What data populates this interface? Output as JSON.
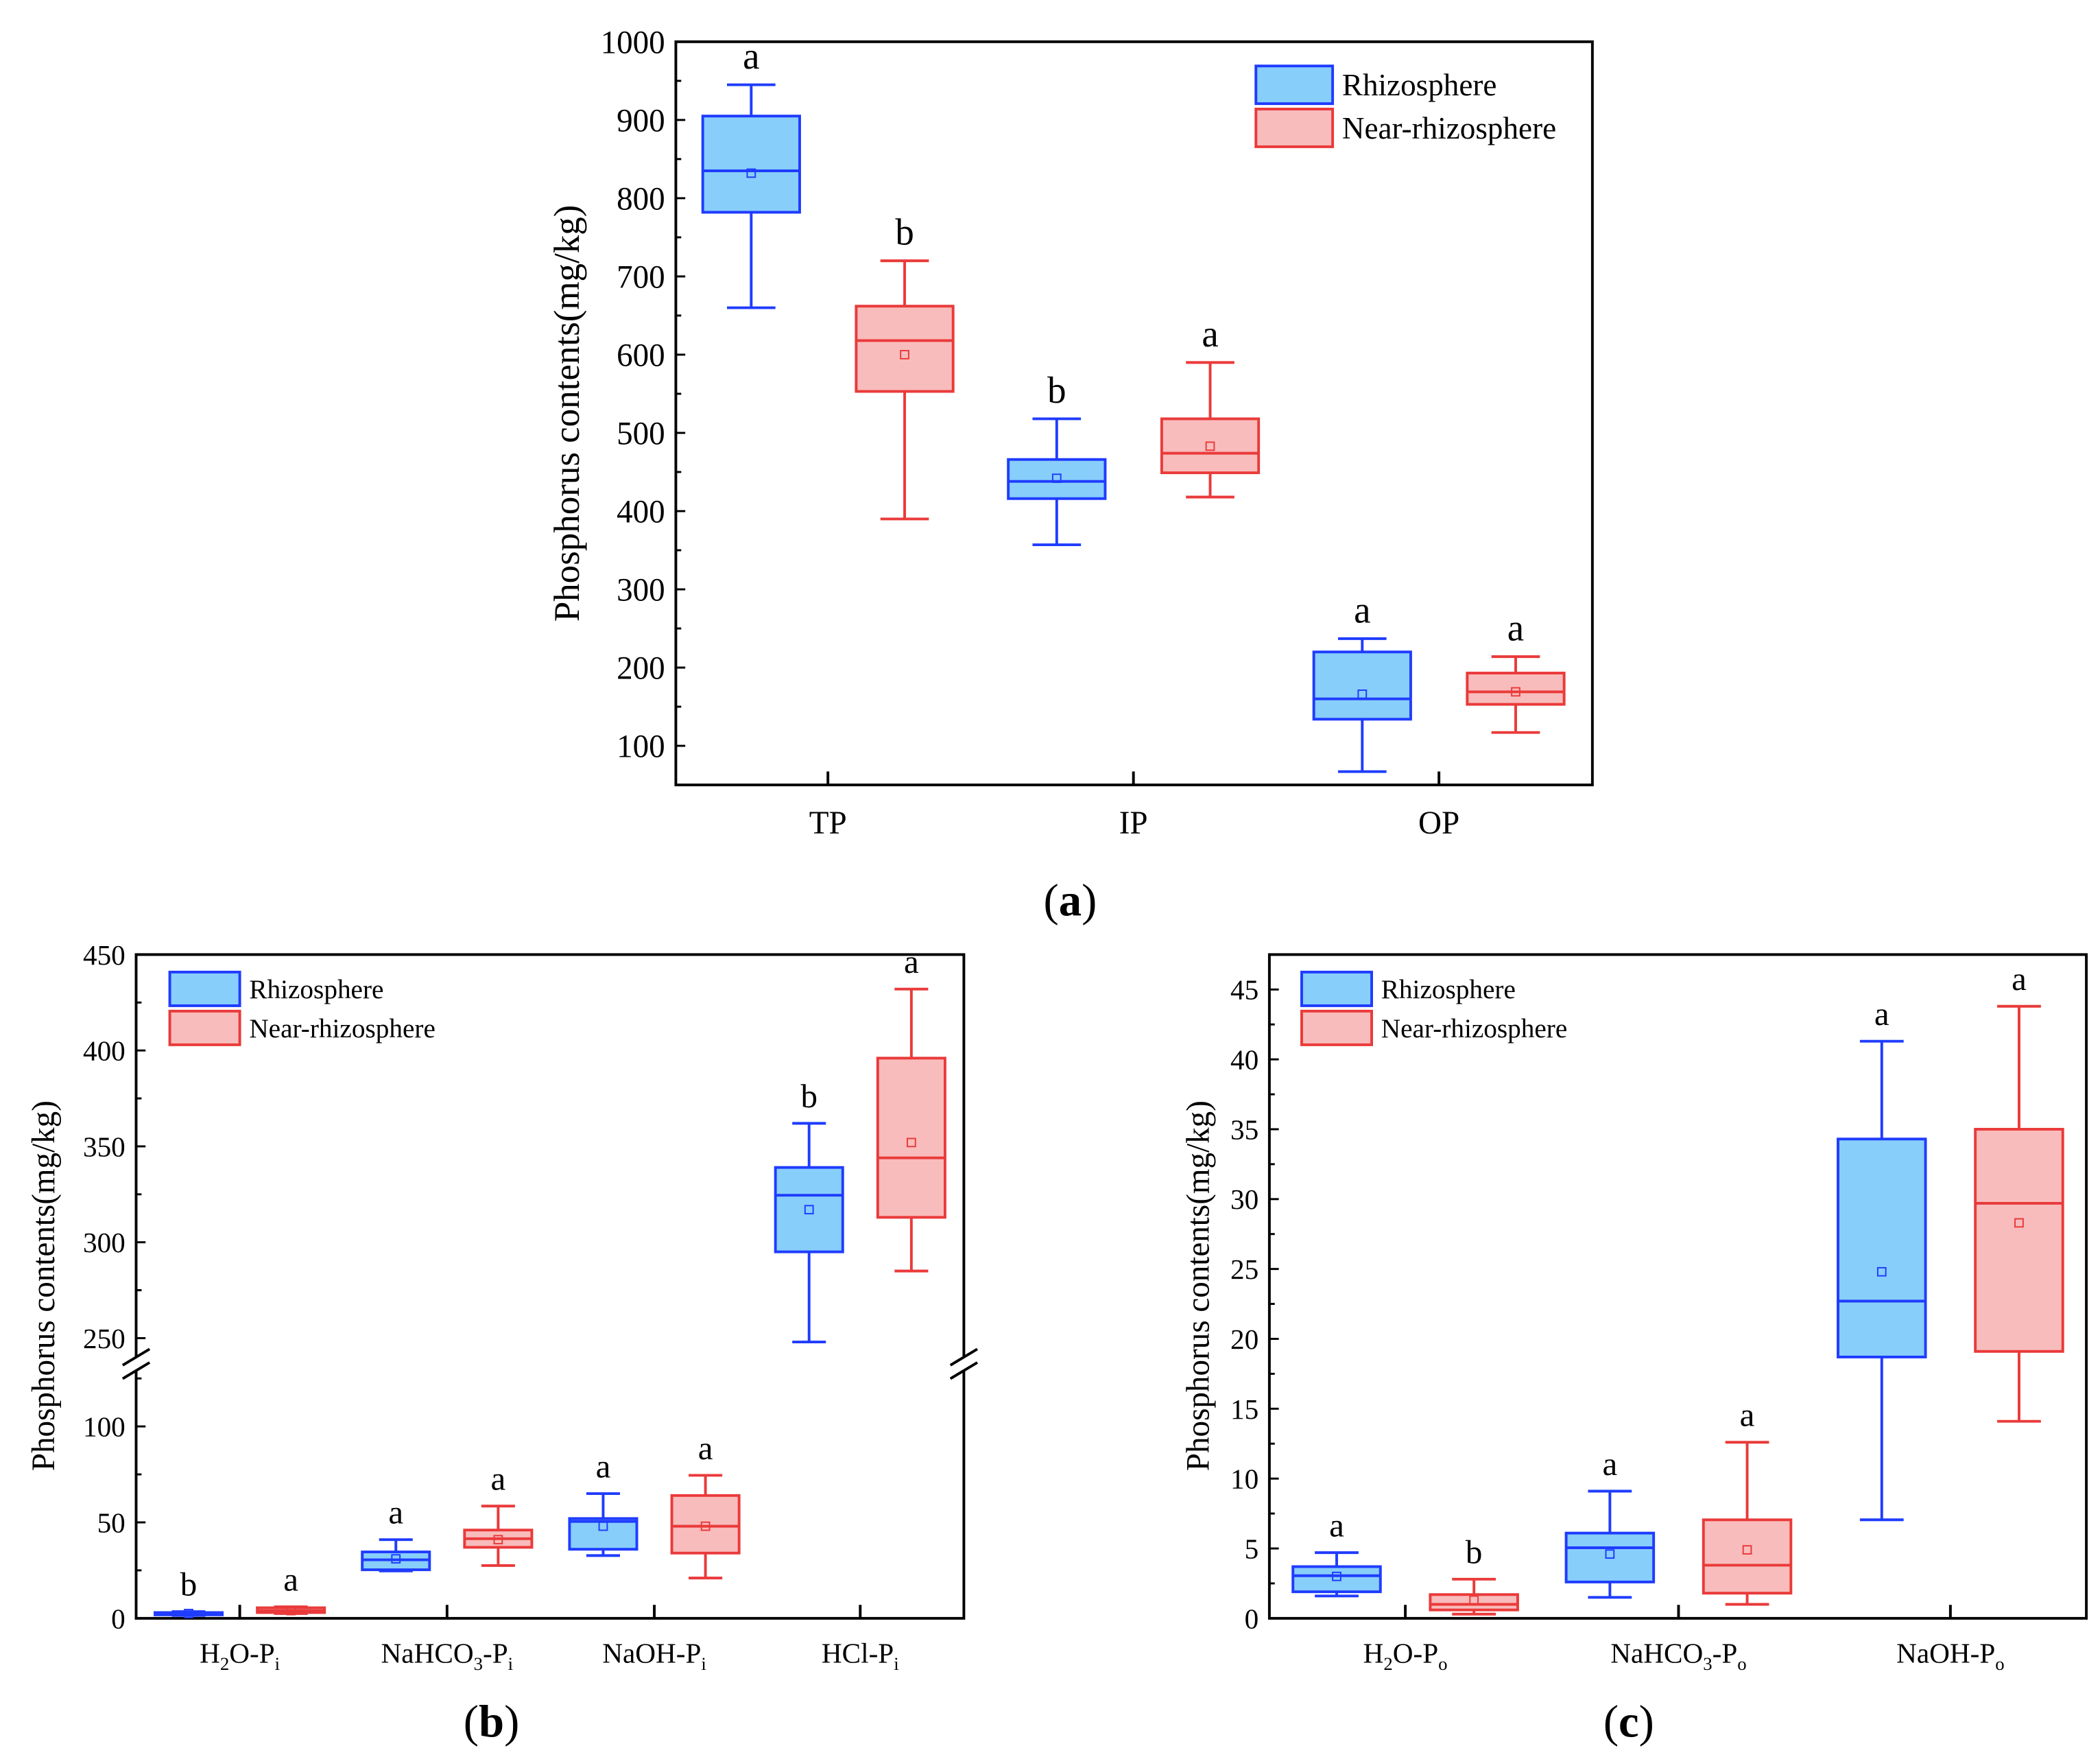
{
  "colors": {
    "rhizosphere_stroke": "#1f3cff",
    "rhizosphere_fill": "#87cefa",
    "near_stroke": "#ea3a3a",
    "near_fill": "#f9bcbc",
    "axis": "#000000"
  },
  "chart_data": [
    {
      "id": "panel-a",
      "type": "box",
      "panel_label": {
        "open": "(",
        "letter": "a",
        "close": ")"
      },
      "ylabel": "Phosphorus contents(mg/kg)",
      "ylim": [
        50,
        1000
      ],
      "yticks": [
        100,
        200,
        300,
        400,
        500,
        600,
        700,
        800,
        900,
        1000
      ],
      "legend": {
        "placement": "top-right",
        "entries": [
          "Rhizosphere",
          "Near-rhizosphere"
        ]
      },
      "categories": [
        {
          "parts": [
            [
              "TP",
              ""
            ]
          ]
        },
        {
          "parts": [
            [
              "IP",
              ""
            ]
          ]
        },
        {
          "parts": [
            [
              "OP",
              ""
            ]
          ]
        }
      ],
      "series": [
        {
          "name": "Rhizosphere",
          "boxes": [
            {
              "min": 660,
              "q1": 782,
              "median": 835,
              "q3": 905,
              "max": 945,
              "mean": 832,
              "letter": "a"
            },
            {
              "min": 357,
              "q1": 416,
              "median": 438,
              "q3": 466,
              "max": 518,
              "mean": 442,
              "letter": "b"
            },
            {
              "min": 67,
              "q1": 134,
              "median": 160,
              "q3": 220,
              "max": 237,
              "mean": 166,
              "letter": "a"
            }
          ]
        },
        {
          "name": "Near-rhizosphere",
          "boxes": [
            {
              "min": 390,
              "q1": 553,
              "median": 618,
              "q3": 662,
              "max": 720,
              "mean": 600,
              "letter": "b"
            },
            {
              "min": 418,
              "q1": 449,
              "median": 474,
              "q3": 518,
              "max": 590,
              "mean": 483,
              "letter": "a"
            },
            {
              "min": 117,
              "q1": 153,
              "median": 169,
              "q3": 193,
              "max": 214,
              "mean": 169,
              "letter": "a"
            }
          ]
        }
      ]
    },
    {
      "id": "panel-b",
      "type": "box",
      "panel_label": {
        "open": "(",
        "letter": "b",
        "close": ")"
      },
      "ylabel": "Phosphorus contents(mg/kg)",
      "ylim": [
        0,
        450
      ],
      "axis_break": [
        134,
        238
      ],
      "yticks": [
        0,
        50,
        100,
        250,
        300,
        350,
        400,
        450
      ],
      "legend": {
        "placement": "top-left",
        "entries": [
          "Rhizosphere",
          "Near-rhizosphere"
        ]
      },
      "categories": [
        {
          "parts": [
            [
              "H",
              ""
            ],
            [
              "2",
              "sub"
            ],
            [
              "O-P",
              ""
            ],
            [
              "i",
              "sub"
            ]
          ]
        },
        {
          "parts": [
            [
              "NaHCO",
              ""
            ],
            [
              "3",
              "sub"
            ],
            [
              "-P",
              ""
            ],
            [
              "i",
              "sub"
            ]
          ]
        },
        {
          "parts": [
            [
              "NaOH-P",
              ""
            ],
            [
              "i",
              "sub"
            ]
          ]
        },
        {
          "parts": [
            [
              "HCl-P",
              ""
            ],
            [
              "i",
              "sub"
            ]
          ]
        }
      ],
      "series": [
        {
          "name": "Rhizosphere",
          "boxes": [
            {
              "min": 1.5,
              "q1": 1.8,
              "median": 2.3,
              "q3": 3.0,
              "max": 3.5,
              "mean": 2.5,
              "letter": "b"
            },
            {
              "min": 24.7,
              "q1": 25.3,
              "median": 30.5,
              "q3": 34.6,
              "max": 41,
              "mean": 31,
              "letter": "a"
            },
            {
              "min": 32.7,
              "q1": 36,
              "median": 50.5,
              "q3": 52,
              "max": 65,
              "mean": 48,
              "letter": "a"
            },
            {
              "min": 248,
              "q1": 295,
              "median": 324.5,
              "q3": 339,
              "max": 362,
              "mean": 317,
              "letter": "b"
            }
          ]
        },
        {
          "name": "Near-rhizosphere",
          "boxes": [
            {
              "min": 2.5,
              "q1": 3.0,
              "median": 4.0,
              "q3": 5.5,
              "max": 6.0,
              "mean": 4.0,
              "letter": "a"
            },
            {
              "min": 27.5,
              "q1": 37,
              "median": 41.5,
              "q3": 46,
              "max": 58.5,
              "mean": 41,
              "letter": "a"
            },
            {
              "min": 21,
              "q1": 34,
              "median": 48,
              "q3": 64,
              "max": 74.5,
              "mean": 48,
              "letter": "a"
            },
            {
              "min": 285,
              "q1": 313,
              "median": 344,
              "q3": 396,
              "max": 432,
              "mean": 352,
              "letter": "a"
            }
          ]
        }
      ]
    },
    {
      "id": "panel-c",
      "type": "box",
      "panel_label": {
        "open": "(",
        "letter": "c",
        "close": ")"
      },
      "ylabel": "Phosphorus contents(mg/kg)",
      "ylim": [
        0,
        47.5
      ],
      "yticks": [
        0,
        5,
        10,
        15,
        20,
        25,
        30,
        35,
        40,
        45
      ],
      "legend": {
        "placement": "top-left",
        "entries": [
          "Rhizosphere",
          "Near-rhizosphere"
        ]
      },
      "categories": [
        {
          "parts": [
            [
              "H",
              ""
            ],
            [
              "2",
              "sub"
            ],
            [
              "O-P",
              ""
            ],
            [
              "o",
              "sub"
            ]
          ]
        },
        {
          "parts": [
            [
              "NaHCO",
              ""
            ],
            [
              "3",
              "sub"
            ],
            [
              "-P",
              ""
            ],
            [
              "o",
              "sub"
            ]
          ]
        },
        {
          "parts": [
            [
              "NaOH-P",
              ""
            ],
            [
              "o",
              "sub"
            ]
          ]
        }
      ],
      "series": [
        {
          "name": "Rhizosphere",
          "boxes": [
            {
              "min": 1.6,
              "q1": 1.9,
              "median": 3.05,
              "q3": 3.7,
              "max": 4.7,
              "mean": 3.0,
              "letter": "a"
            },
            {
              "min": 1.5,
              "q1": 2.6,
              "median": 5.05,
              "q3": 6.1,
              "max": 9.1,
              "mean": 4.6,
              "letter": "a"
            },
            {
              "min": 7.05,
              "q1": 18.7,
              "median": 22.7,
              "q3": 34.3,
              "max": 41.3,
              "mean": 24.8,
              "letter": "a"
            }
          ]
        },
        {
          "name": "Near-rhizosphere",
          "boxes": [
            {
              "min": 0.3,
              "q1": 0.6,
              "median": 1.0,
              "q3": 1.7,
              "max": 2.8,
              "mean": 1.3,
              "letter": "b"
            },
            {
              "min": 1.0,
              "q1": 1.8,
              "median": 3.8,
              "q3": 7.05,
              "max": 12.6,
              "mean": 4.9,
              "letter": "a"
            },
            {
              "min": 14.1,
              "q1": 19.1,
              "median": 29.7,
              "q3": 35.0,
              "max": 43.8,
              "mean": 28.3,
              "letter": "a"
            }
          ]
        }
      ]
    }
  ]
}
